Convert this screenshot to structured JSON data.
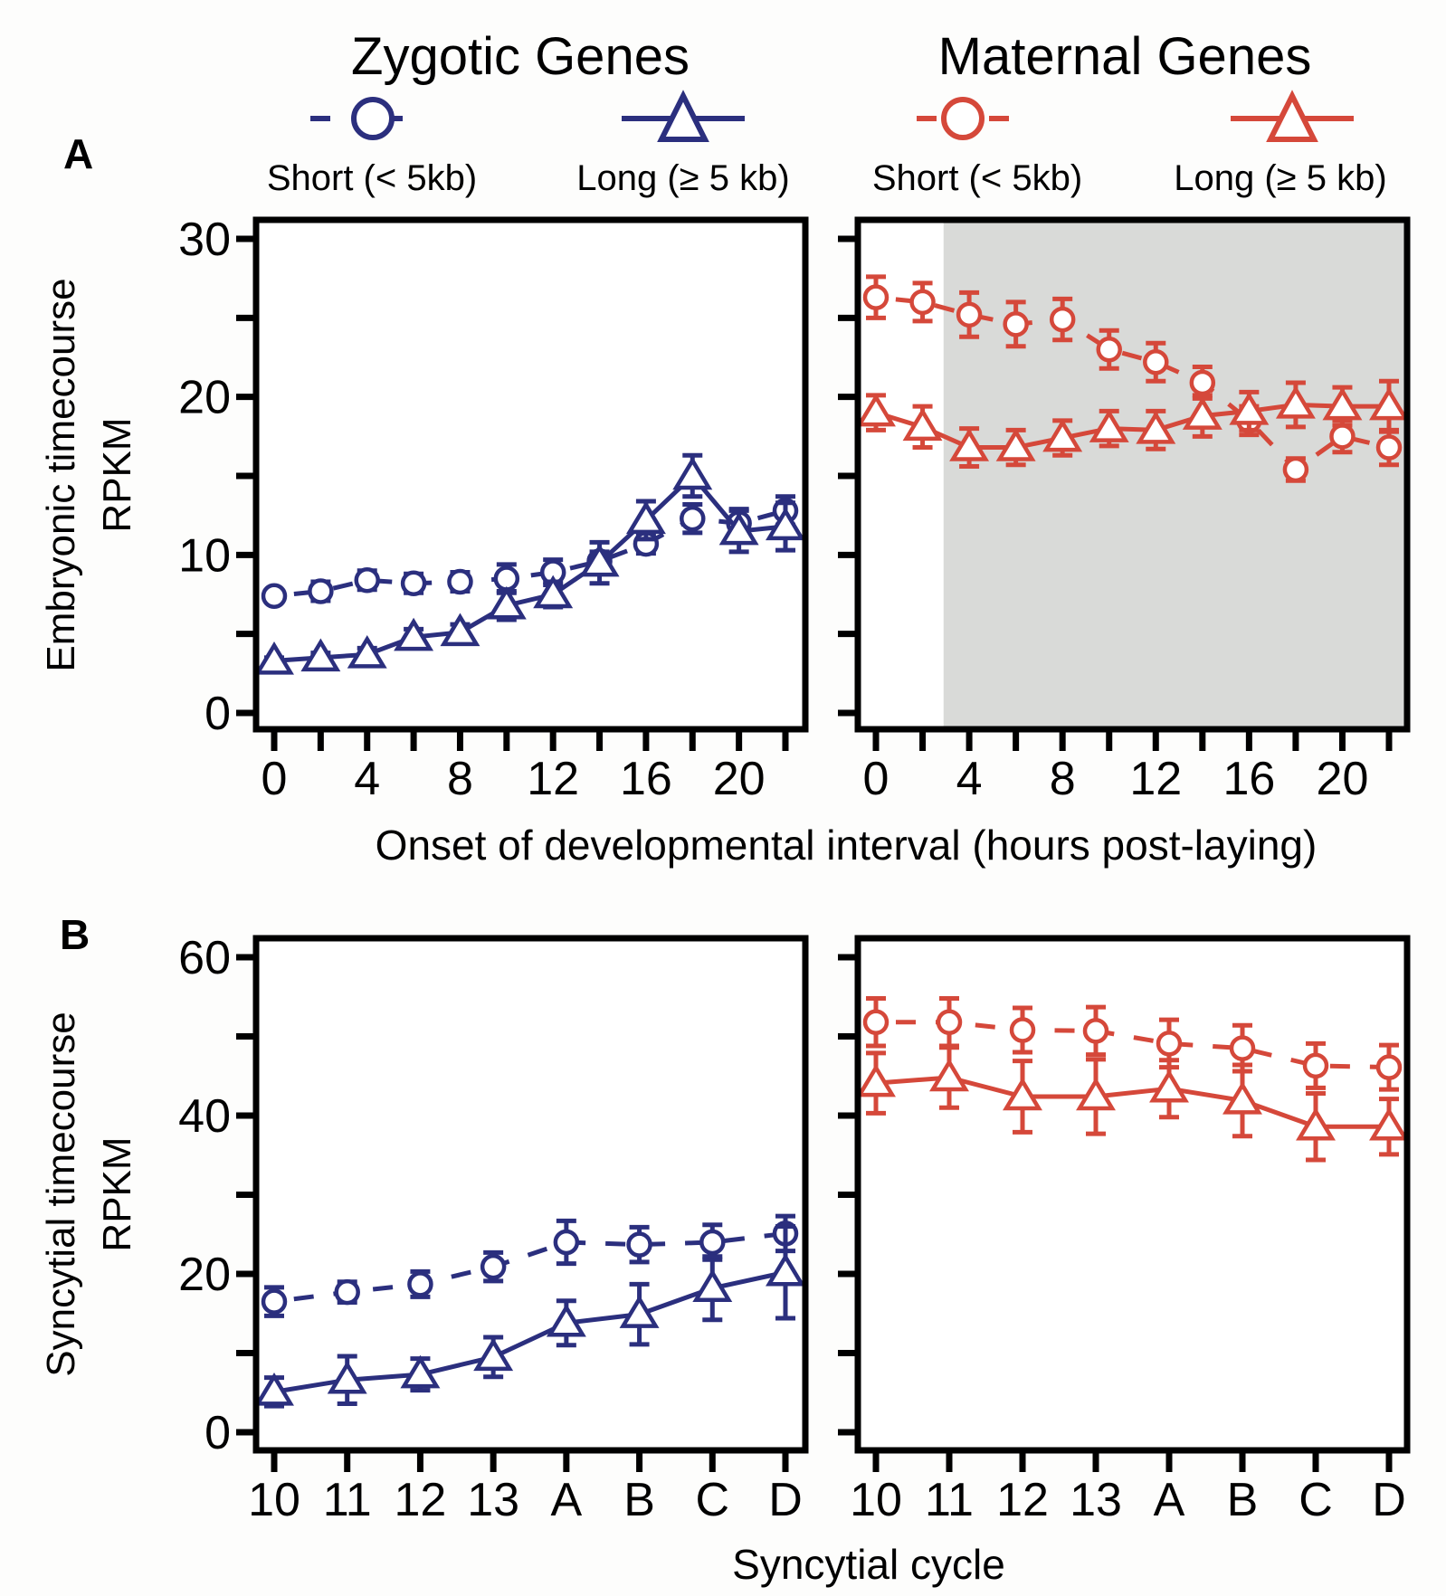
{
  "colors": {
    "zygotic": "#2b2f7e",
    "maternal": "#d5483a",
    "shade": "#d9dad8",
    "axis": "#000000"
  },
  "legend": {
    "groups": [
      {
        "title": "Zygotic Genes",
        "color_key": "zygotic",
        "items": [
          {
            "label": "Short (< 5kb)",
            "marker": "circle",
            "line": "dashed"
          },
          {
            "label": "Long (≥ 5 kb)",
            "marker": "triangle",
            "line": "solid"
          }
        ]
      },
      {
        "title": "Maternal Genes",
        "color_key": "maternal",
        "items": [
          {
            "label": "Short (< 5kb)",
            "marker": "circle",
            "line": "dashed"
          },
          {
            "label": "Long (≥ 5 kb)",
            "marker": "triangle",
            "line": "solid"
          }
        ]
      }
    ]
  },
  "panel_labels": [
    "A",
    "B"
  ],
  "chart_data": [
    {
      "id": "A-zygotic",
      "type": "line",
      "panel": "A",
      "group": "Zygotic Genes",
      "ylabel": "Embryonic timecourse\nRPKM",
      "xlabel": "Onset of developmental interval (hours post-laying)",
      "x": [
        0,
        2,
        4,
        6,
        8,
        10,
        12,
        14,
        16,
        18,
        20,
        22
      ],
      "xticks": [
        0,
        2,
        4,
        6,
        8,
        10,
        12,
        14,
        16,
        18,
        20,
        22
      ],
      "xtick_labels": [
        "0",
        "",
        "4",
        "",
        "8",
        "",
        "12",
        "",
        "16",
        "",
        "20",
        ""
      ],
      "ylim": [
        0,
        30
      ],
      "yticks": [
        0,
        5,
        10,
        15,
        20,
        25,
        30
      ],
      "ytick_labels": [
        "0",
        "",
        "10",
        "",
        "20",
        "",
        "30"
      ],
      "shaded_xrange": null,
      "series": [
        {
          "name": "Short (< 5kb)",
          "marker": "circle",
          "line": "dashed",
          "values": [
            7.4,
            7.7,
            8.4,
            8.2,
            8.3,
            8.5,
            8.9,
            9.6,
            10.7,
            12.3,
            12.0,
            12.8
          ],
          "errors": [
            0.3,
            0.6,
            0.6,
            0.6,
            0.6,
            0.9,
            0.8,
            0.6,
            0.6,
            0.9,
            0.9,
            0.9
          ]
        },
        {
          "name": "Long (≥ 5 kb)",
          "marker": "triangle",
          "line": "solid",
          "values": [
            3.3,
            3.5,
            3.7,
            4.8,
            5.1,
            6.8,
            7.5,
            9.5,
            12.2,
            15.0,
            11.5,
            11.8
          ],
          "errors": [
            0.2,
            0.3,
            0.4,
            0.5,
            0.5,
            0.9,
            0.8,
            1.3,
            1.2,
            1.3,
            1.3,
            1.5
          ]
        }
      ]
    },
    {
      "id": "A-maternal",
      "type": "line",
      "panel": "A",
      "group": "Maternal Genes",
      "xlabel": "Onset of developmental interval (hours post-laying)",
      "x": [
        0,
        2,
        4,
        6,
        8,
        10,
        12,
        14,
        16,
        18,
        20,
        22
      ],
      "xticks": [
        0,
        2,
        4,
        6,
        8,
        10,
        12,
        14,
        16,
        18,
        20,
        22
      ],
      "xtick_labels": [
        "0",
        "",
        "4",
        "",
        "8",
        "",
        "12",
        "",
        "16",
        "",
        "20",
        ""
      ],
      "ylim": [
        0,
        30
      ],
      "yticks": [
        0,
        5,
        10,
        15,
        20,
        25,
        30
      ],
      "ytick_labels": [
        "",
        "",
        "",
        "",
        "",
        "",
        ""
      ],
      "shaded_xrange": [
        2.9,
        23
      ],
      "series": [
        {
          "name": "Short (< 5kb)",
          "marker": "circle",
          "line": "dashed",
          "values": [
            26.3,
            26.0,
            25.2,
            24.6,
            24.9,
            23.0,
            22.2,
            20.9,
            18.5,
            15.4,
            17.5,
            16.8
          ],
          "errors": [
            1.3,
            1.2,
            1.4,
            1.4,
            1.3,
            1.2,
            1.2,
            1.0,
            0.9,
            0.7,
            1.0,
            1.1
          ]
        },
        {
          "name": "Long (≥ 5 kb)",
          "marker": "triangle",
          "line": "solid",
          "values": [
            19.0,
            18.1,
            16.8,
            16.8,
            17.4,
            18.0,
            17.9,
            18.8,
            19.1,
            19.5,
            19.4,
            19.4
          ],
          "errors": [
            1.1,
            1.3,
            1.2,
            1.1,
            1.1,
            1.1,
            1.2,
            1.3,
            1.2,
            1.4,
            1.2,
            1.6
          ]
        }
      ]
    },
    {
      "id": "B-zygotic",
      "type": "line",
      "panel": "B",
      "group": "Zygotic Genes",
      "ylabel": "Syncytial timecourse\nRPKM",
      "xlabel": "Syncytial cycle",
      "x": [
        "10",
        "11",
        "12",
        "13",
        "A",
        "B",
        "C",
        "D"
      ],
      "xtick_labels": [
        "10",
        "11",
        "12",
        "13",
        "A",
        "B",
        "C",
        "D"
      ],
      "ylim": [
        0,
        60
      ],
      "yticks": [
        0,
        10,
        20,
        30,
        40,
        50,
        60
      ],
      "ytick_labels": [
        "0",
        "",
        "20",
        "",
        "40",
        "",
        "60"
      ],
      "shaded_xrange": null,
      "series": [
        {
          "name": "Short (< 5kb)",
          "marker": "circle",
          "line": "dashed",
          "values": [
            16.5,
            17.7,
            18.7,
            20.9,
            24.0,
            23.7,
            24.0,
            25.1
          ],
          "errors": [
            1.8,
            1.3,
            1.6,
            1.8,
            2.7,
            2.2,
            2.2,
            2.2
          ]
        },
        {
          "name": "Long (≥ 5 kb)",
          "marker": "triangle",
          "line": "solid",
          "values": [
            5.1,
            6.6,
            7.3,
            9.5,
            13.8,
            14.9,
            18.2,
            20.2
          ],
          "errors": [
            1.8,
            3.0,
            2.0,
            2.5,
            2.8,
            3.8,
            4.0,
            5.8
          ]
        }
      ]
    },
    {
      "id": "B-maternal",
      "type": "line",
      "panel": "B",
      "group": "Maternal Genes",
      "xlabel": "Syncytial cycle",
      "x": [
        "10",
        "11",
        "12",
        "13",
        "A",
        "B",
        "C",
        "D"
      ],
      "xtick_labels": [
        "10",
        "11",
        "12",
        "13",
        "A",
        "B",
        "C",
        "D"
      ],
      "ylim": [
        0,
        60
      ],
      "yticks": [
        0,
        10,
        20,
        30,
        40,
        50,
        60
      ],
      "ytick_labels": [
        "",
        "",
        "",
        "",
        "",
        "",
        ""
      ],
      "shaded_xrange": null,
      "series": [
        {
          "name": "Short (< 5kb)",
          "marker": "circle",
          "line": "dashed",
          "values": [
            51.8,
            51.8,
            50.8,
            50.7,
            49.1,
            48.5,
            46.3,
            46.1
          ],
          "errors": [
            3.0,
            3.0,
            2.8,
            3.0,
            3.0,
            2.9,
            2.8,
            2.8
          ]
        },
        {
          "name": "Long (≥ 5 kb)",
          "marker": "triangle",
          "line": "solid",
          "values": [
            44.1,
            44.8,
            42.4,
            42.4,
            43.4,
            41.9,
            38.6,
            38.6
          ],
          "errors": [
            3.8,
            3.8,
            4.5,
            4.7,
            3.6,
            4.5,
            4.2,
            3.5
          ]
        }
      ]
    }
  ],
  "xaxis_titles": {
    "A": "Onset of developmental interval (hours post-laying)",
    "B": "Syncytial cycle"
  },
  "yaxis_titles": {
    "A": [
      "Embryonic timecourse",
      "RPKM"
    ],
    "B": [
      "Syncytial timecourse",
      "RPKM"
    ]
  }
}
